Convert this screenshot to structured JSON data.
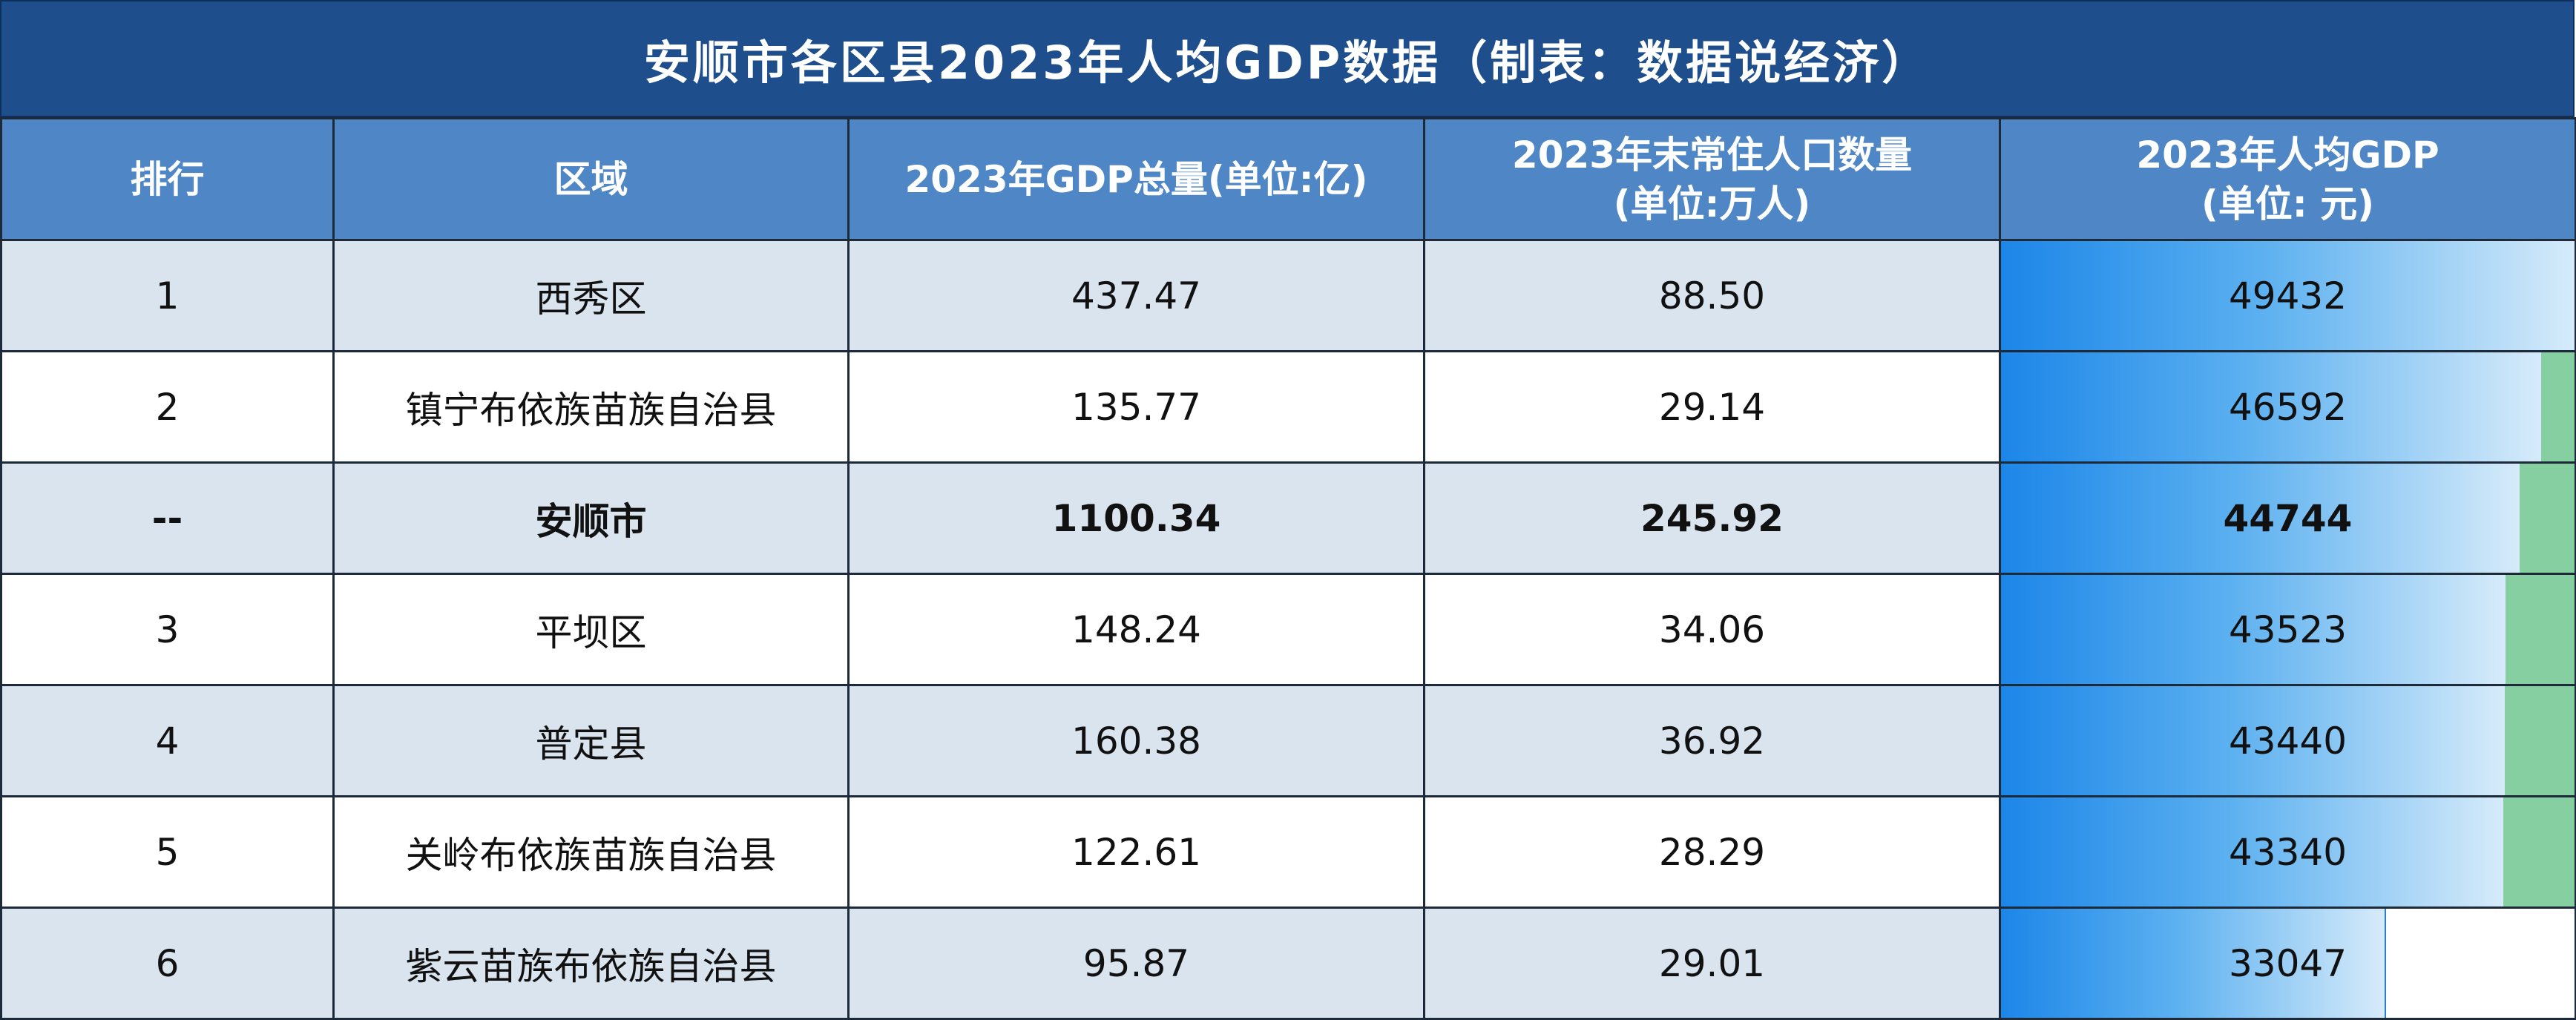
{
  "title": "安顺市各区县2023年人均GDP数据（制表：数据说经济）",
  "headers": {
    "rank": "排行",
    "region": "区域",
    "gdp": "2023年GDP总量(单位:亿)",
    "pop_line1": "2023年末常住人口数量",
    "pop_line2": "(单位:万人)",
    "per_line1": "2023年人均GDP",
    "per_line2": "(单位: 元)"
  },
  "rows": [
    {
      "rank": "1",
      "region": "西秀区",
      "gdp": "437.47",
      "pop": "88.50",
      "per_capita": "49432",
      "per_value": 49432,
      "style": "shade"
    },
    {
      "rank": "2",
      "region": "镇宁布依族苗族自治县",
      "gdp": "135.77",
      "pop": "29.14",
      "per_capita": "46592",
      "per_value": 46592,
      "style": "plain"
    },
    {
      "rank": "--",
      "region": "安顺市",
      "gdp": "1100.34",
      "pop": "245.92",
      "per_capita": "44744",
      "per_value": 44744,
      "style": "shade bold"
    },
    {
      "rank": "3",
      "region": "平坝区",
      "gdp": "148.24",
      "pop": "34.06",
      "per_capita": "43523",
      "per_value": 43523,
      "style": "plain"
    },
    {
      "rank": "4",
      "region": "普定县",
      "gdp": "160.38",
      "pop": "36.92",
      "per_capita": "43440",
      "per_value": 43440,
      "style": "shade"
    },
    {
      "rank": "5",
      "region": "关岭布依族苗族自治县",
      "gdp": "122.61",
      "pop": "28.29",
      "per_capita": "43340",
      "per_value": 43340,
      "style": "plain"
    },
    {
      "rank": "6",
      "region": "紫云苗族布依族自治县",
      "gdp": "95.87",
      "pop": "29.01",
      "per_capita": "33047",
      "per_value": 33047,
      "style": "shade"
    }
  ],
  "colors": {
    "title_bg": "#1f4e8c",
    "header_bg": "#4f86c6",
    "row_shade": "#dae4ef",
    "bar_start": "#1c86e8",
    "bar_end": "#d6ebfa",
    "bar_remainder": "#86cfa0"
  }
}
